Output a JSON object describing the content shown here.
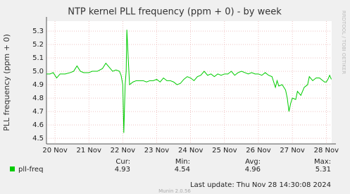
{
  "chart_data": {
    "type": "line",
    "title": "NTP kernel PLL frequency (ppm + 0) - by week",
    "y_label": "PLL frequency (ppm + 0)",
    "side_text": "RRDTOOL / TOBI OETIKER",
    "footer": "Munin 2.0.56",
    "last_update": "Last update: Thu Nov 28 14:30:08 2024",
    "xlim": [
      19.75,
      28.16
    ],
    "xticks": [
      {
        "value": 20,
        "label": "20 Nov"
      },
      {
        "value": 21,
        "label": "21 Nov"
      },
      {
        "value": 22,
        "label": "22 Nov"
      },
      {
        "value": 23,
        "label": "23 Nov"
      },
      {
        "value": 24,
        "label": "24 Nov"
      },
      {
        "value": 25,
        "label": "25 Nov"
      },
      {
        "value": 26,
        "label": "26 Nov"
      },
      {
        "value": 27,
        "label": "27 Nov"
      },
      {
        "value": 28,
        "label": "28 Nov"
      }
    ],
    "ylim": [
      4.458,
      5.374
    ],
    "yticks": [
      4.5,
      4.6,
      4.7,
      4.8,
      4.9,
      {
        "value": 5,
        "label": "5.0"
      },
      5.1,
      5.2,
      5.3
    ],
    "grid": true,
    "stats_labels": [
      "Cur:",
      "Min:",
      "Avg:",
      "Max:"
    ],
    "series": [
      {
        "name": "pll-freq",
        "color": "#00cc00",
        "stats": [
          4.93,
          4.54,
          4.96,
          5.31
        ],
        "x": [
          19.75,
          19.85,
          19.95,
          20.05,
          20.15,
          20.3,
          20.45,
          20.55,
          20.65,
          20.75,
          20.85,
          20.95,
          21.0,
          21.1,
          21.25,
          21.4,
          21.5,
          21.6,
          21.7,
          21.8,
          21.9,
          21.95,
          22.0,
          22.03,
          22.07,
          22.1,
          22.12,
          22.16,
          22.2,
          22.3,
          22.4,
          22.5,
          22.6,
          22.7,
          22.8,
          22.9,
          23.0,
          23.1,
          23.2,
          23.3,
          23.4,
          23.5,
          23.6,
          23.7,
          23.8,
          23.9,
          24.0,
          24.1,
          24.2,
          24.3,
          24.4,
          24.5,
          24.6,
          24.7,
          24.8,
          24.9,
          25.0,
          25.1,
          25.2,
          25.3,
          25.4,
          25.5,
          25.6,
          25.7,
          25.8,
          25.9,
          26.0,
          26.1,
          26.2,
          26.3,
          26.4,
          26.5,
          26.55,
          26.6,
          26.7,
          26.8,
          26.85,
          26.9,
          26.95,
          27.0,
          27.1,
          27.15,
          27.25,
          27.35,
          27.45,
          27.5,
          27.6,
          27.7,
          27.8,
          27.9,
          27.95,
          28.0,
          28.05,
          28.1,
          28.15
        ],
        "values": [
          4.98,
          4.98,
          4.99,
          4.95,
          4.98,
          4.98,
          4.99,
          5.0,
          5.04,
          5.0,
          4.99,
          4.99,
          4.99,
          5.0,
          5.0,
          5.02,
          5.06,
          5.03,
          5.0,
          5.01,
          5.0,
          4.97,
          4.9,
          4.54,
          4.9,
          5.0,
          5.31,
          5.1,
          4.9,
          4.92,
          4.93,
          4.93,
          4.93,
          4.92,
          4.93,
          4.93,
          4.94,
          4.92,
          4.95,
          4.93,
          4.93,
          4.92,
          4.9,
          4.91,
          4.94,
          4.96,
          4.95,
          4.93,
          4.96,
          4.97,
          5.0,
          4.97,
          4.98,
          4.96,
          4.98,
          4.97,
          4.98,
          4.98,
          5.0,
          4.97,
          4.99,
          5.0,
          4.99,
          4.98,
          4.99,
          4.98,
          4.98,
          4.97,
          4.99,
          4.97,
          4.96,
          4.88,
          4.93,
          4.89,
          4.9,
          4.86,
          4.8,
          4.7,
          4.76,
          4.8,
          4.79,
          4.85,
          4.82,
          4.88,
          4.9,
          4.96,
          4.93,
          4.95,
          4.95,
          4.93,
          4.92,
          4.92,
          4.94,
          4.97,
          4.94
        ]
      }
    ]
  }
}
